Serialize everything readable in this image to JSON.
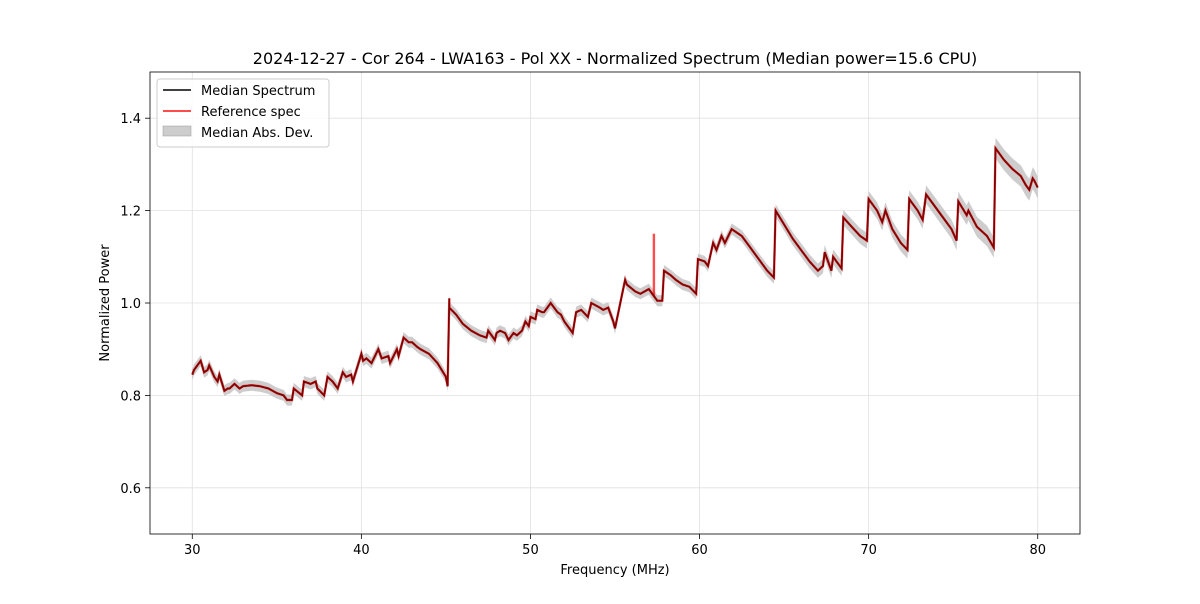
{
  "chart_data": {
    "type": "line",
    "title": "2024-12-27 - Cor 264 - LWA163 - Pol XX - Normalized Spectrum (Median power=15.6 CPU)",
    "xlabel": "Frequency (MHz)",
    "ylabel": "Normalized Power",
    "xlim": [
      27.5,
      82.5
    ],
    "ylim": [
      0.5,
      1.5
    ],
    "xticks": [
      30,
      40,
      50,
      60,
      70,
      80
    ],
    "yticks": [
      0.6,
      0.8,
      1.0,
      1.2,
      1.4
    ],
    "xtick_labels": [
      "30",
      "40",
      "50",
      "60",
      "70",
      "80"
    ],
    "ytick_labels": [
      "0.6",
      "0.8",
      "1.0",
      "1.2",
      "1.4"
    ],
    "grid": true,
    "legend_position": "top-left",
    "legend": [
      "Median Spectrum",
      "Reference spec",
      "Median Abs. Dev."
    ],
    "colors": {
      "median": "#000000",
      "reference": "#ff0000",
      "mad_fill": "#c0c0c0"
    },
    "series": [
      {
        "name": "Median Spectrum",
        "x": [
          30.0,
          30.1,
          30.5,
          30.7,
          30.9,
          31.0,
          31.3,
          31.5,
          31.6,
          31.9,
          32.1,
          32.2,
          32.5,
          32.8,
          33.0,
          33.5,
          34.0,
          34.5,
          35.0,
          35.4,
          35.6,
          35.9,
          36.0,
          36.5,
          36.6,
          37.0,
          37.3,
          37.4,
          37.8,
          38.0,
          38.3,
          38.6,
          38.9,
          39.1,
          39.4,
          39.5,
          40.0,
          40.1,
          40.3,
          40.6,
          41.0,
          41.2,
          41.6,
          41.7,
          42.1,
          42.2,
          42.5,
          42.8,
          43.0,
          43.3,
          43.5,
          44.0,
          44.5,
          45.0,
          45.1,
          45.2,
          45.2,
          45.6,
          46.0,
          46.5,
          47.0,
          47.4,
          47.5,
          47.9,
          48.0,
          48.2,
          48.5,
          48.7,
          49.0,
          49.2,
          49.5,
          49.7,
          49.9,
          50.0,
          50.3,
          50.4,
          50.7,
          50.8,
          51.2,
          51.6,
          51.8,
          52.0,
          52.5,
          52.7,
          53.0,
          53.4,
          53.6,
          54.1,
          54.3,
          54.6,
          54.9,
          55.0,
          55.6,
          55.7,
          56.2,
          56.5,
          57.0,
          57.3,
          57.5,
          57.8,
          57.9,
          58.3,
          58.6,
          59.0,
          59.4,
          59.8,
          59.9,
          60.3,
          60.5,
          60.8,
          61.0,
          61.3,
          61.5,
          61.9,
          62.5,
          63.0,
          63.5,
          64.0,
          64.4,
          64.5,
          65.0,
          65.5,
          66.0,
          66.5,
          67.0,
          67.3,
          67.4,
          67.8,
          67.9,
          68.4,
          68.5,
          69.0,
          69.5,
          69.9,
          70.0,
          70.5,
          70.8,
          71.0,
          71.4,
          71.9,
          72.3,
          72.4,
          72.9,
          73.2,
          73.4,
          73.9,
          74.4,
          74.9,
          75.2,
          75.3,
          75.8,
          75.9,
          76.4,
          77.0,
          77.4,
          77.5,
          78.0,
          78.5,
          79.0,
          79.3,
          79.5,
          79.7,
          79.8,
          80.0
        ],
        "y": [
          0.845,
          0.855,
          0.875,
          0.85,
          0.855,
          0.865,
          0.84,
          0.83,
          0.845,
          0.81,
          0.815,
          0.815,
          0.825,
          0.815,
          0.82,
          0.822,
          0.82,
          0.815,
          0.805,
          0.8,
          0.79,
          0.79,
          0.815,
          0.8,
          0.83,
          0.825,
          0.83,
          0.815,
          0.8,
          0.84,
          0.83,
          0.815,
          0.85,
          0.84,
          0.845,
          0.83,
          0.89,
          0.875,
          0.88,
          0.87,
          0.9,
          0.88,
          0.885,
          0.87,
          0.9,
          0.885,
          0.925,
          0.915,
          0.915,
          0.905,
          0.9,
          0.89,
          0.87,
          0.84,
          0.82,
          1.01,
          0.99,
          0.975,
          0.955,
          0.94,
          0.93,
          0.925,
          0.94,
          0.92,
          0.935,
          0.94,
          0.935,
          0.92,
          0.935,
          0.93,
          0.94,
          0.96,
          0.95,
          0.97,
          0.965,
          0.985,
          0.98,
          0.98,
          1.0,
          0.98,
          0.975,
          0.96,
          0.935,
          0.98,
          0.985,
          0.97,
          1.0,
          0.99,
          0.985,
          0.99,
          0.96,
          0.945,
          1.05,
          1.04,
          1.025,
          1.02,
          1.03,
          1.015,
          1.005,
          1.005,
          1.07,
          1.06,
          1.05,
          1.04,
          1.035,
          1.02,
          1.095,
          1.09,
          1.08,
          1.13,
          1.115,
          1.145,
          1.13,
          1.16,
          1.145,
          1.12,
          1.095,
          1.07,
          1.055,
          1.2,
          1.17,
          1.14,
          1.115,
          1.09,
          1.07,
          1.08,
          1.11,
          1.07,
          1.1,
          1.075,
          1.185,
          1.165,
          1.145,
          1.135,
          1.225,
          1.2,
          1.175,
          1.2,
          1.16,
          1.13,
          1.115,
          1.225,
          1.2,
          1.18,
          1.235,
          1.21,
          1.185,
          1.16,
          1.135,
          1.22,
          1.19,
          1.2,
          1.165,
          1.145,
          1.12,
          1.335,
          1.31,
          1.29,
          1.275,
          1.255,
          1.245,
          1.27,
          1.265,
          1.25
        ]
      },
      {
        "name": "Reference spec",
        "spike": {
          "x": 57.3,
          "y": 1.15
        }
      }
    ],
    "mad_half_width": 0.012,
    "mad_growth_above_62MHz": 0.012
  }
}
